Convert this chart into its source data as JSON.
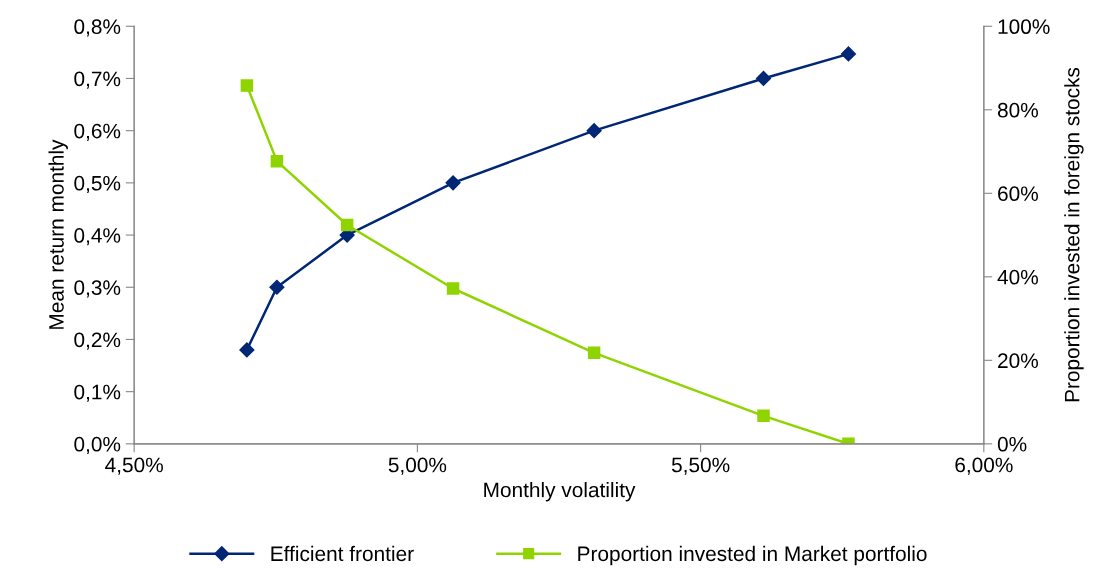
{
  "chart_data": {
    "type": "line",
    "xlabel": "Monthly volatility",
    "ylabel": "Mean return monthly",
    "y2label": "Proportion invested in foreign stocks",
    "x": [
      4.699,
      4.752,
      4.876,
      5.063,
      5.312,
      5.611,
      5.761
    ],
    "series": [
      {
        "name": "Efficient frontier",
        "color": "#002776",
        "marker": "diamond",
        "values": [
          0.18,
          0.3,
          0.4,
          0.5,
          0.6,
          0.7,
          0.747
        ]
      },
      {
        "name": "Proportion invested in Market portfolio",
        "color": "#8fd400",
        "marker": "square",
        "axis": "y2",
        "values": [
          85.8,
          67.7,
          52.4,
          37.2,
          21.8,
          6.7,
          0
        ]
      }
    ],
    "xlim": [
      4.5,
      6.0
    ],
    "xticks": [
      {
        "value": 4.5,
        "label": "4,50%"
      },
      {
        "value": 5.0,
        "label": "5,00%"
      },
      {
        "value": 5.5,
        "label": "5,50%"
      },
      {
        "value": 6.0,
        "label": "6,00%"
      }
    ],
    "ylim": [
      0,
      0.8
    ],
    "yticks": [
      {
        "value": 0,
        "label": "0,0%"
      },
      {
        "value": 0.1,
        "label": "0,1%"
      },
      {
        "value": 0.2,
        "label": "0,2%"
      },
      {
        "value": 0.3,
        "label": "0,3%"
      },
      {
        "value": 0.4,
        "label": "0,4%"
      },
      {
        "value": 0.5,
        "label": "0,5%"
      },
      {
        "value": 0.6,
        "label": "0,6%"
      },
      {
        "value": 0.7,
        "label": "0,7%"
      },
      {
        "value": 0.8,
        "label": "0,8%"
      }
    ],
    "y2lim": [
      0,
      100
    ],
    "y2ticks": [
      {
        "value": 0,
        "label": "0%"
      },
      {
        "value": 20,
        "label": "20%"
      },
      {
        "value": 40,
        "label": "40%"
      },
      {
        "value": 60,
        "label": "60%"
      },
      {
        "value": 80,
        "label": "80%"
      },
      {
        "value": 100,
        "label": "100%"
      }
    ],
    "grid": false,
    "legend": "bottom",
    "line_style": "solid"
  }
}
